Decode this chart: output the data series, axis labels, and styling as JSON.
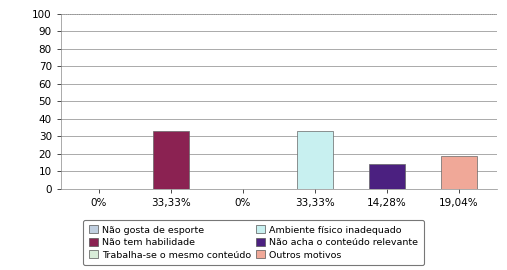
{
  "values": [
    0,
    33.33,
    0,
    33.33,
    14.28,
    19.04
  ],
  "bar_colors": [
    "#c0cfe0",
    "#8b2252",
    "#c0cfe0",
    "#c8f0f0",
    "#4b2080",
    "#f0a898"
  ],
  "x_labels": [
    "0%",
    "33,33%",
    "0%",
    "33,33%",
    "14,28%",
    "19,04%"
  ],
  "ylim": [
    0,
    100
  ],
  "yticks": [
    0,
    10,
    20,
    30,
    40,
    50,
    60,
    70,
    80,
    90,
    100
  ],
  "legend": [
    {
      "label": "Não gosta de esporte",
      "color": "#c0cfe0"
    },
    {
      "label": "Não tem habilidade",
      "color": "#8b2252"
    },
    {
      "label": "Trabalha-se o mesmo conteúdo",
      "color": "#d8ecd8"
    },
    {
      "label": "Ambiente físico inadequado",
      "color": "#c8f0f0"
    },
    {
      "label": "Não acha o conteúdo relevante",
      "color": "#4b2080"
    },
    {
      "label": "Outros motivos",
      "color": "#f0a898"
    }
  ],
  "grid_color": "#888888",
  "background_color": "#ffffff",
  "bar_width": 0.5,
  "fontsize": 7.5
}
